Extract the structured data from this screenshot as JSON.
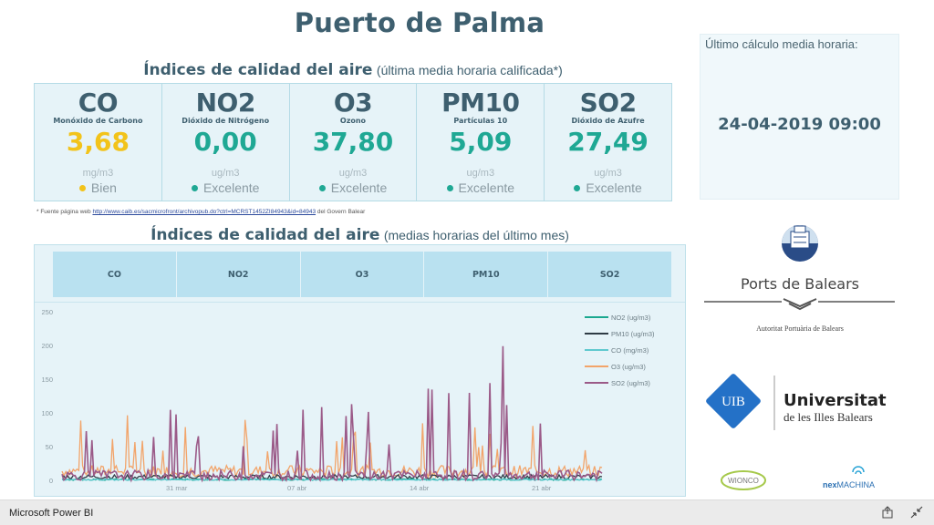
{
  "header": {
    "title": "Puerto de Palma"
  },
  "kpi_section": {
    "title_strong": "Índices de calidad del aire",
    "title_light": "(última media horaria calificada*)",
    "items": [
      {
        "code": "CO",
        "name": "Monóxido de Carbono",
        "value": "3,68",
        "unit": "mg/m3",
        "status": "Bien",
        "color": "#f2c31a"
      },
      {
        "code": "NO2",
        "name": "Dióxido de Nitrógeno",
        "value": "0,00",
        "unit": "ug/m3",
        "status": "Excelente",
        "color": "#1fa894"
      },
      {
        "code": "O3",
        "name": "Ozono",
        "value": "37,80",
        "unit": "ug/m3",
        "status": "Excelente",
        "color": "#1fa894"
      },
      {
        "code": "PM10",
        "name": "Partículas 10",
        "value": "5,09",
        "unit": "ug/m3",
        "status": "Excelente",
        "color": "#1fa894"
      },
      {
        "code": "SO2",
        "name": "Dióxido de Azufre",
        "value": "27,49",
        "unit": "ug/m3",
        "status": "Excelente",
        "color": "#1fa894"
      }
    ],
    "source_prefix": "* Fuente página web",
    "source_link": "http://www.caib.es/sacmicrofront/archivopub.do?ctrl=MCRST1452ZI84943&id=84943",
    "source_suffix": "del Govern Balear"
  },
  "last_calc": {
    "label": "Último cálculo media horaria:",
    "datetime": "24-04-2019 09:00"
  },
  "chart_section": {
    "title_strong": "Índices de calidad del aire",
    "title_light": "(medias horarias del último mes)",
    "tabs": [
      "CO",
      "NO2",
      "O3",
      "PM10",
      "SO2"
    ]
  },
  "chart_data": {
    "type": "line",
    "title": "Índices de calidad del aire (medias horarias del último mes)",
    "xlabel": "",
    "ylabel": "",
    "ylim": [
      0,
      250
    ],
    "yticks": [
      0,
      50,
      100,
      150,
      200,
      250
    ],
    "xticks": [
      "31 mar",
      "07 abr",
      "14 abr",
      "21 abr"
    ],
    "grid": false,
    "legend_position": "top-right",
    "series": [
      {
        "name": "NO2 (ug/m3)",
        "color": "#1aa88f",
        "typical_range": [
          0,
          5
        ],
        "peak": 20
      },
      {
        "name": "PM10 (ug/m3)",
        "color": "#2f3b45",
        "typical_range": [
          2,
          15
        ],
        "peak": 25
      },
      {
        "name": "CO (mg/m3)",
        "color": "#5fc9cf",
        "typical_range": [
          0,
          4
        ],
        "peak": 4
      },
      {
        "name": "O3 (ug/m3)",
        "color": "#f2a46a",
        "typical_range": [
          5,
          40
        ],
        "peak": 95
      },
      {
        "name": "SO2 (ug/m3)",
        "color": "#9b5a88",
        "typical_range": [
          0,
          30
        ],
        "peak": 200
      }
    ],
    "notable_peaks": [
      {
        "series": "SO2 (ug/m3)",
        "x": "~18 abr",
        "y": 200
      },
      {
        "series": "SO2 (ug/m3)",
        "x": "~17 abr",
        "y": 145
      },
      {
        "series": "SO2 (ug/m3)",
        "x": "~29 mar",
        "y": 105
      },
      {
        "series": "SO2 (ug/m3)",
        "x": "~09 abr",
        "y": 102
      },
      {
        "series": "O3 (ug/m3)",
        "x": "~27 mar",
        "y": 97
      },
      {
        "series": "O3 (ug/m3)",
        "x": "~12 abr",
        "y": 85
      }
    ]
  },
  "logos": {
    "ports": {
      "name": "Ports de Balears",
      "subtitle": "Autoritat Portuària de Balears"
    },
    "uib": {
      "badge": "UIB",
      "name": "Universitat",
      "subtitle": "de les Illes Balears"
    },
    "partners": [
      "WIONCO",
      "nexMACHINA"
    ]
  },
  "taskbar": {
    "app_name": "Microsoft Power BI"
  }
}
